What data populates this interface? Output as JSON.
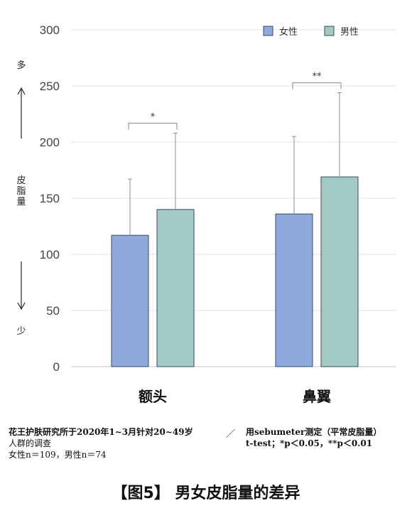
{
  "chart_data": {
    "type": "bar",
    "categories": [
      "额头",
      "鼻翼"
    ],
    "series": [
      {
        "name": "女性",
        "values": [
          117,
          136
        ],
        "error_upper": [
          167,
          205
        ],
        "color": "#8ea9db"
      },
      {
        "name": "男性",
        "values": [
          140,
          169
        ],
        "error_upper": [
          208,
          244
        ],
        "color": "#a2c9c3"
      }
    ],
    "ylim": [
      0,
      300
    ],
    "yticks": [
      0,
      50,
      100,
      150,
      200,
      250,
      300
    ],
    "ylabel": "皮脂量",
    "ylabel_top": "多",
    "ylabel_bottom": "少",
    "grid": true,
    "legend_position": "top-right",
    "significance": [
      {
        "category": "额头",
        "label": "*"
      },
      {
        "category": "鼻翼",
        "label": "**"
      }
    ],
    "bar_edge_color": "#3c4a5c"
  },
  "notes": {
    "left_line1": "花王护肤研究所于2020年1~3月针对20~49岁",
    "left_line2": "人群的调查",
    "left_line3": "女性n＝109，男性n＝74",
    "slash": "／",
    "right_line1": "用sebumeter测定（平常皮脂量）",
    "right_line2": "t-test；*p＜0.05，**p＜0.01"
  },
  "caption": "【图5】 男女皮脂量的差异"
}
